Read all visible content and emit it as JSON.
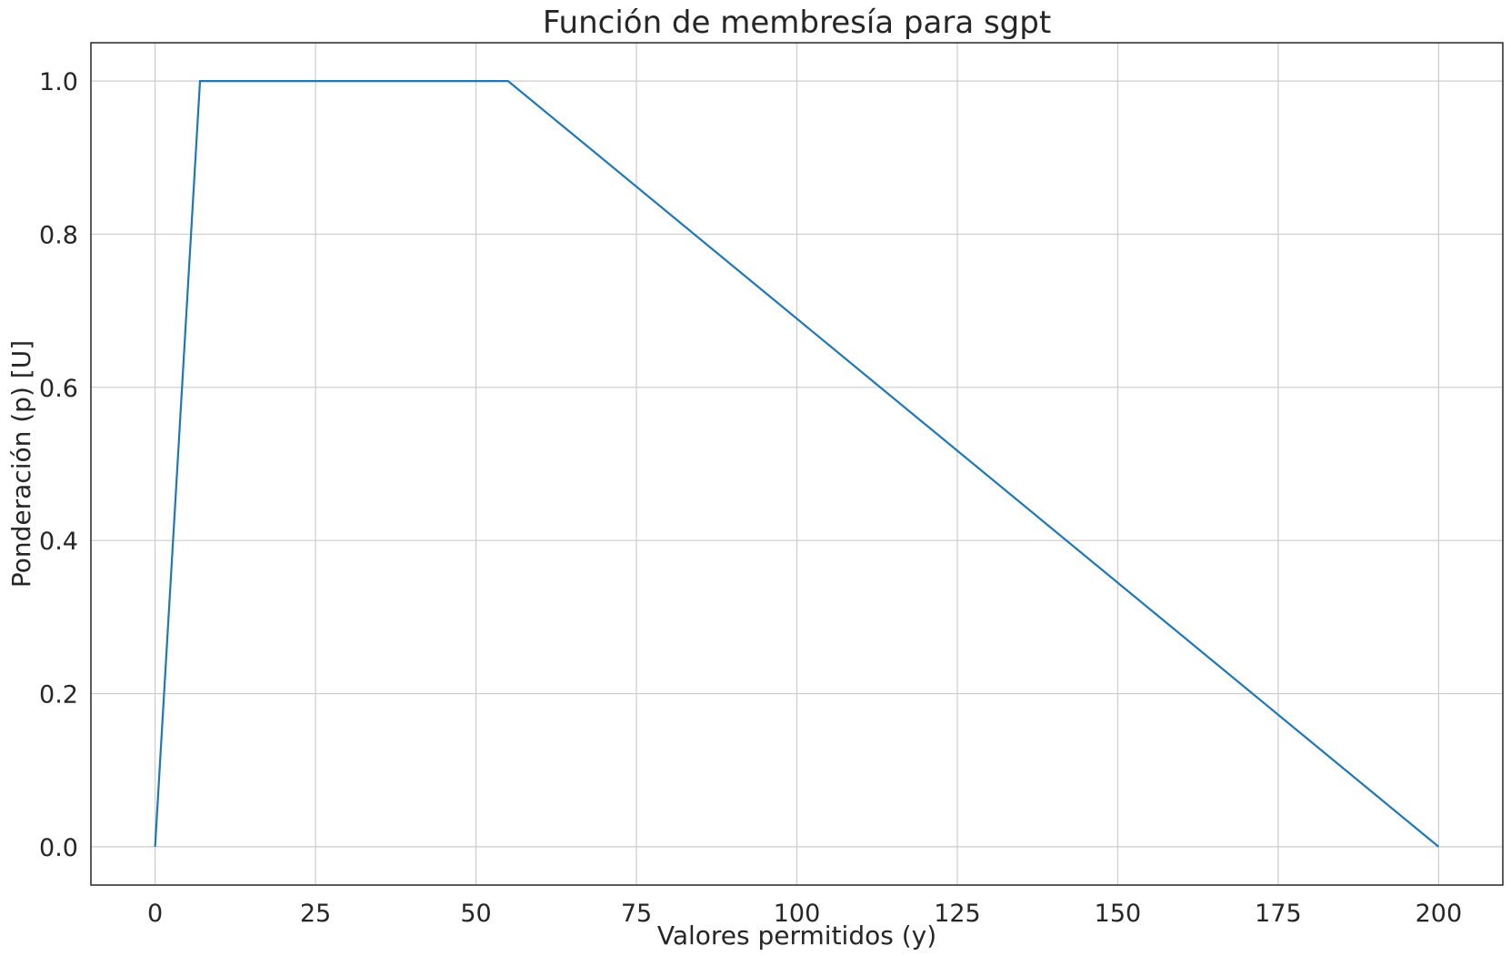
{
  "chart_data": {
    "type": "line",
    "title": "Función de membresía para sgpt",
    "xlabel": "Valores permitidos (y)",
    "ylabel": "Ponderación (p) [U]",
    "xlim": [
      -10,
      210
    ],
    "ylim": [
      -0.05,
      1.05
    ],
    "xticks": [
      0,
      25,
      50,
      75,
      100,
      125,
      150,
      175,
      200
    ],
    "xtick_labels": [
      "0",
      "25",
      "50",
      "75",
      "100",
      "125",
      "150",
      "175",
      "200"
    ],
    "yticks": [
      0.0,
      0.2,
      0.4,
      0.6,
      0.8,
      1.0
    ],
    "ytick_labels": [
      "0.0",
      "0.2",
      "0.4",
      "0.6",
      "0.8",
      "1.0"
    ],
    "grid": true,
    "series": [
      {
        "color": "#1f77b4",
        "x": [
          0,
          7,
          55,
          200
        ],
        "y": [
          0.0,
          1.0,
          1.0,
          0.0
        ]
      }
    ]
  }
}
